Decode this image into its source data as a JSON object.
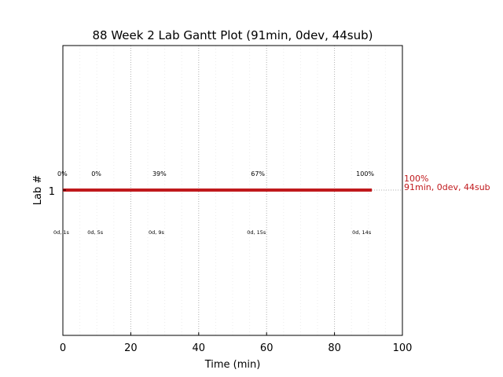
{
  "chart_data": {
    "type": "gantt",
    "title": "88 Week 2 Lab Gantt Plot (91min, 0dev, 44sub)",
    "xlabel": "Time (min)",
    "ylabel": "Lab #",
    "xlim": [
      0,
      100
    ],
    "xticks": [
      0,
      20,
      40,
      60,
      80,
      100
    ],
    "x_tick_labels": [
      "0",
      "20",
      "40",
      "60",
      "80",
      "100"
    ],
    "minor_grid_step": 5,
    "y_category": "1",
    "bar": {
      "start": 0,
      "end": 91,
      "color": "#c0191c"
    },
    "reference_line_end": 100,
    "end_label": {
      "percent": "100%",
      "summary": "91min, 0dev, 44sub",
      "color": "#c0191c"
    },
    "annotations": [
      {
        "x": 0,
        "top": "0%",
        "bottom": "0d, 1s"
      },
      {
        "x": 10,
        "top": "0%",
        "bottom": "0d, 5s"
      },
      {
        "x": 28,
        "top": "39%",
        "bottom": "0d, 9s"
      },
      {
        "x": 57,
        "top": "67%",
        "bottom": "0d, 15s"
      },
      {
        "x": 88,
        "top": "100%",
        "bottom": "0d, 14s"
      }
    ],
    "grid": true,
    "legend": "none"
  }
}
